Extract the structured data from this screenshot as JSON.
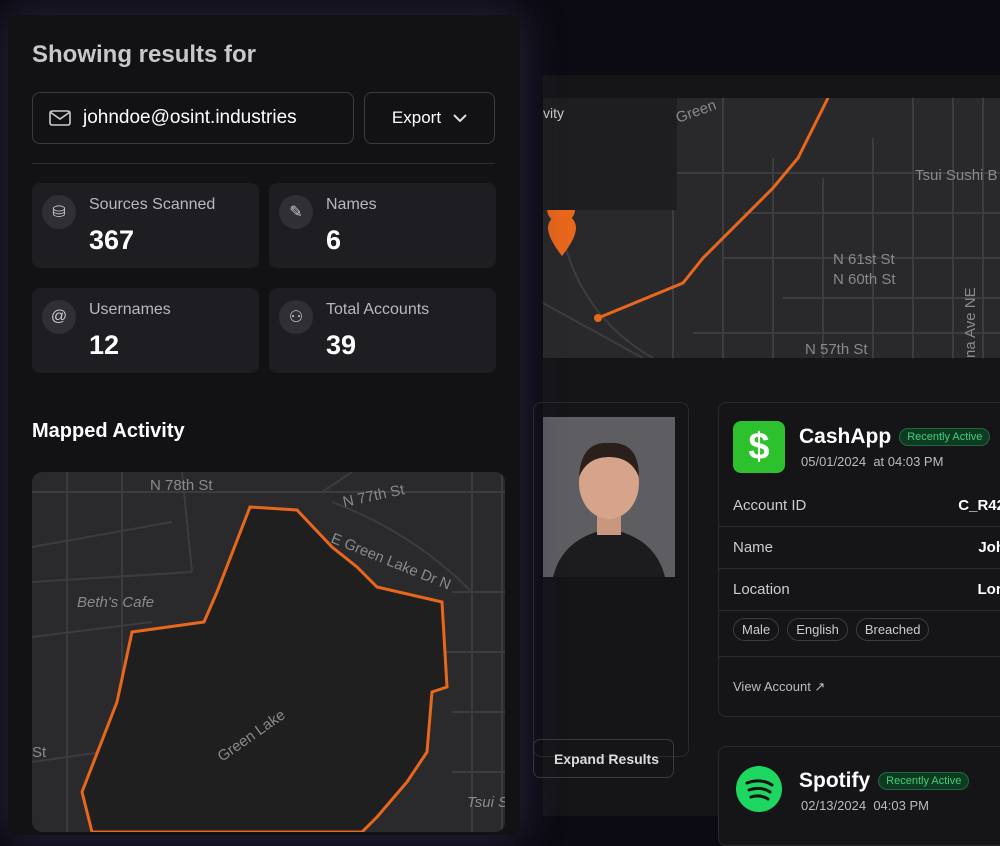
{
  "header": {
    "title": "Showing results for"
  },
  "search": {
    "query": "johndoe@osint.industries",
    "export": "Export"
  },
  "stats": [
    {
      "label": "Sources Scanned",
      "value": 367
    },
    {
      "label": "Names",
      "value": 6
    },
    {
      "label": "Usernames",
      "value": 12
    },
    {
      "label": "Total Accounts",
      "value": 39
    }
  ],
  "mapped_activity": {
    "title": "Mapped Activity",
    "labels": [
      "N 78th St",
      "N 77th St",
      "E Green Lake Dr N",
      "Beth's Cafe",
      "Green Lake",
      "St",
      "Tsui S"
    ]
  },
  "background": {
    "panel_title": "vity",
    "map_labels": [
      "Green",
      "Tsui Sushi B",
      "N 61st St",
      "N 60th St",
      "N 57th St",
      "na Ave NE"
    ],
    "expand": "Expand Results"
  },
  "accounts": [
    {
      "name": "CashApp",
      "status": "Recently Active",
      "date": "05/01/2024",
      "time": "at 04:03 PM",
      "fields": [
        [
          "Account ID",
          "C_R42"
        ],
        [
          "Name",
          "Joh"
        ],
        [
          "Location",
          "Lon"
        ]
      ],
      "tags": [
        "Male",
        "English",
        "Breached"
      ],
      "link": "View Account"
    },
    {
      "name": "Spotify",
      "status": "Recently Active",
      "date": "02/13/2024",
      "time": "04:03 PM"
    }
  ]
}
